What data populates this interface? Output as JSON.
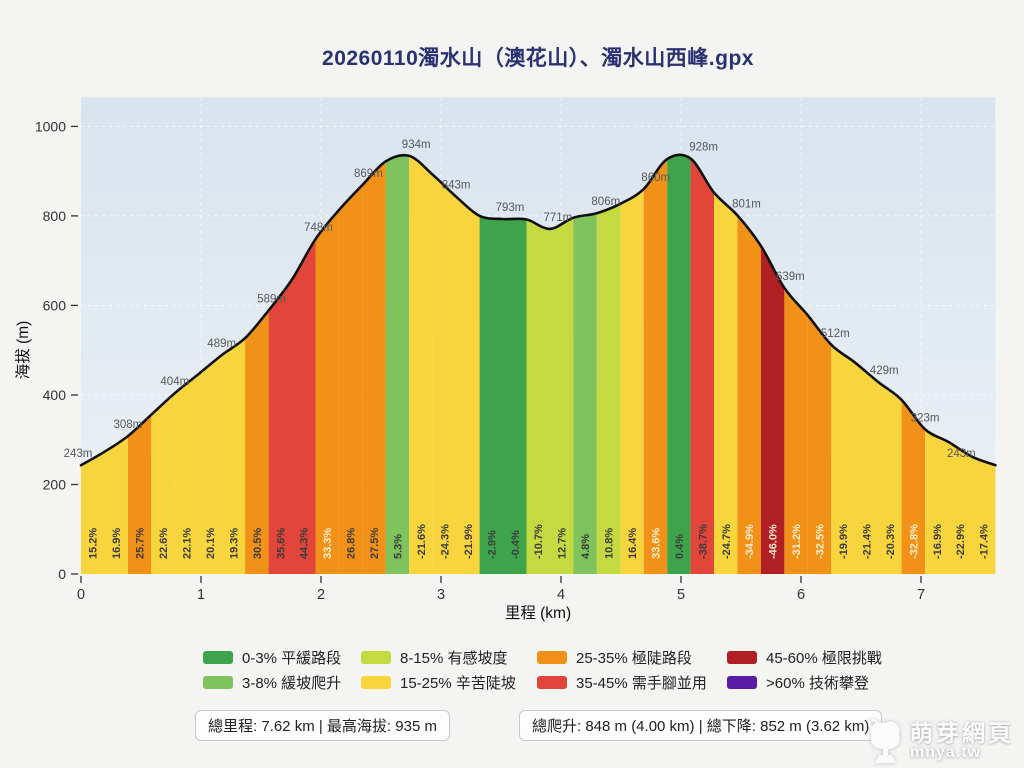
{
  "chart_data": {
    "type": "area",
    "title": "20260110濁水山（澳花山）、濁水山西峰.gpx",
    "title_color": "#2a3272",
    "xlabel": "里程 (km)",
    "ylabel": "海拔 (m)",
    "xlim": [
      0,
      7.62
    ],
    "ylim": [
      0,
      1065
    ],
    "x_ticks": [
      0,
      1,
      2,
      3,
      4,
      5,
      6,
      7
    ],
    "y_ticks": [
      0,
      200,
      400,
      600,
      800,
      1000
    ],
    "grid": true,
    "background_gradient": [
      "#d9e4ef",
      "#ecf1f5"
    ],
    "line_color": "#101010",
    "distance_km": 7.62,
    "elevations_m": [
      243,
      273,
      308,
      356,
      404,
      446,
      489,
      527,
      589,
      658,
      748,
      813,
      869,
      922,
      934,
      892,
      843,
      800,
      793,
      792,
      771,
      796,
      806,
      827,
      860,
      927,
      928,
      852,
      801,
      733,
      639,
      578,
      512,
      473,
      429,
      389,
      323,
      295,
      262,
      243
    ],
    "segment_grades_pct": [
      15.2,
      16.9,
      25.7,
      22.6,
      22.1,
      20.1,
      19.3,
      30.5,
      35.6,
      44.3,
      33.3,
      26.8,
      27.5,
      5.3,
      -21.6,
      -24.3,
      -21.9,
      -2.9,
      -0.4,
      -10.7,
      12.7,
      4.8,
      10.8,
      16.4,
      33.6,
      0.4,
      -38.7,
      -24.7,
      -34.9,
      -46.0,
      -31.2,
      -32.5,
      -19.9,
      -21.4,
      -20.3,
      -32.8,
      -16.9,
      -22.9,
      -17.4
    ],
    "light_label_segments": [
      10,
      24,
      28,
      29,
      30,
      31,
      35
    ],
    "point_labels": [
      {
        "i": 0,
        "t": "243m",
        "dx": -3
      },
      {
        "i": 2,
        "t": "308m"
      },
      {
        "i": 4,
        "t": "404m"
      },
      {
        "i": 6,
        "t": "489m"
      },
      {
        "i": 8,
        "t": "589m",
        "dx": 3
      },
      {
        "i": 10,
        "t": "748m",
        "dx": 3
      },
      {
        "i": 12,
        "t": "869m",
        "dx": 6
      },
      {
        "i": 14,
        "t": "934m",
        "dx": 7
      },
      {
        "i": 16,
        "t": "843m"
      },
      {
        "i": 18,
        "t": "793m",
        "dx": 7
      },
      {
        "i": 20,
        "t": "771m",
        "dx": 8
      },
      {
        "i": 22,
        "t": "806m",
        "dx": 9
      },
      {
        "i": 24,
        "t": "860m",
        "dx": 12
      },
      {
        "i": 26,
        "t": "928m",
        "dx": 13
      },
      {
        "i": 28,
        "t": "801m",
        "dx": 9
      },
      {
        "i": 30,
        "t": "639m",
        "dx": 6
      },
      {
        "i": 32,
        "t": "512m",
        "dx": 4
      },
      {
        "i": 34,
        "t": "429m",
        "dx": 6
      },
      {
        "i": 36,
        "t": "323m"
      },
      {
        "i": 39,
        "t": "243m",
        "dx": -34
      }
    ],
    "grade_bands": [
      {
        "range": "0-3%",
        "label": "0-3% 平緩路段",
        "color": "#3ea44c",
        "max": 3
      },
      {
        "range": "3-8%",
        "label": "3-8% 緩坡爬升",
        "color": "#7fc35c",
        "max": 8
      },
      {
        "range": "8-15%",
        "label": "8-15% 有感坡度",
        "color": "#c5da40",
        "max": 15
      },
      {
        "range": "15-25%",
        "label": "15-25% 辛苦陡坡",
        "color": "#f8d53d",
        "max": 25
      },
      {
        "range": "25-35%",
        "label": "25-35% 極陡路段",
        "color": "#f29118",
        "max": 35
      },
      {
        "range": "35-45%",
        "label": "35-45% 需手腳並用",
        "color": "#e2453a",
        "max": 45
      },
      {
        "range": "45-60%",
        "label": "45-60% 極限挑戰",
        "color": "#b01f24",
        "max": 60
      },
      {
        "range": ">60%",
        "label": ">60% 技術攀登",
        "color": "#5a1ba6",
        "max": 999
      }
    ]
  },
  "stats": {
    "left": "總里程: 7.62 km | 最高海拔: 935 m",
    "right": "總爬升: 848 m (4.00 km) | 總下降: 852 m (3.62 km)"
  },
  "watermark": {
    "icon": "tree-icon",
    "site_name": "萌芽網頁",
    "site_url": "mnya.tw"
  }
}
